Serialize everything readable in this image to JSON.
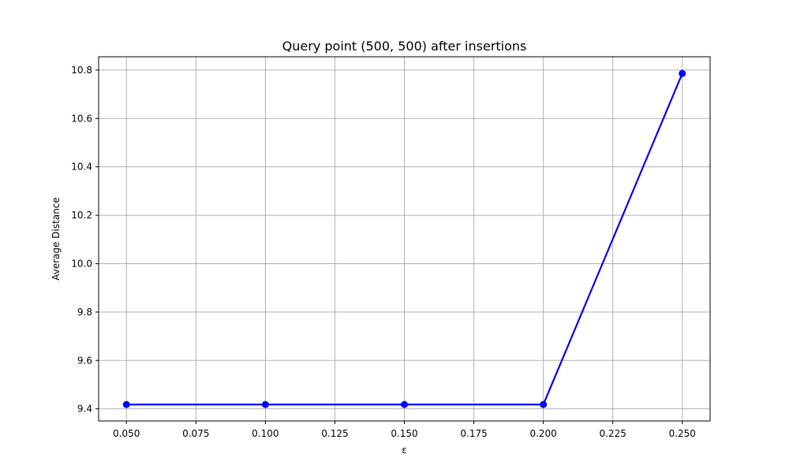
{
  "chart_data": {
    "type": "line",
    "title": "Query point (500, 500) after insertions",
    "xlabel": "ε",
    "ylabel": "Average Distance",
    "x": [
      0.05,
      0.1,
      0.15,
      0.2,
      0.25
    ],
    "series": [
      {
        "values": [
          9.418,
          9.418,
          9.418,
          9.418,
          10.786
        ],
        "color": "#0000ff",
        "marker": "circle"
      }
    ],
    "xlim": [
      0.04,
      0.26
    ],
    "ylim": [
      9.35,
      10.855
    ],
    "xticks": [
      0.05,
      0.075,
      0.1,
      0.125,
      0.15,
      0.175,
      0.2,
      0.225,
      0.25
    ],
    "xtick_labels": [
      "0.050",
      "0.075",
      "0.100",
      "0.125",
      "0.150",
      "0.175",
      "0.200",
      "0.225",
      "0.250"
    ],
    "yticks": [
      9.4,
      9.6,
      9.8,
      10.0,
      10.2,
      10.4,
      10.6,
      10.8
    ],
    "ytick_labels": [
      "9.4",
      "9.6",
      "9.8",
      "10.0",
      "10.2",
      "10.4",
      "10.6",
      "10.8"
    ],
    "grid": true,
    "grid_color": "#b0b0b0"
  }
}
